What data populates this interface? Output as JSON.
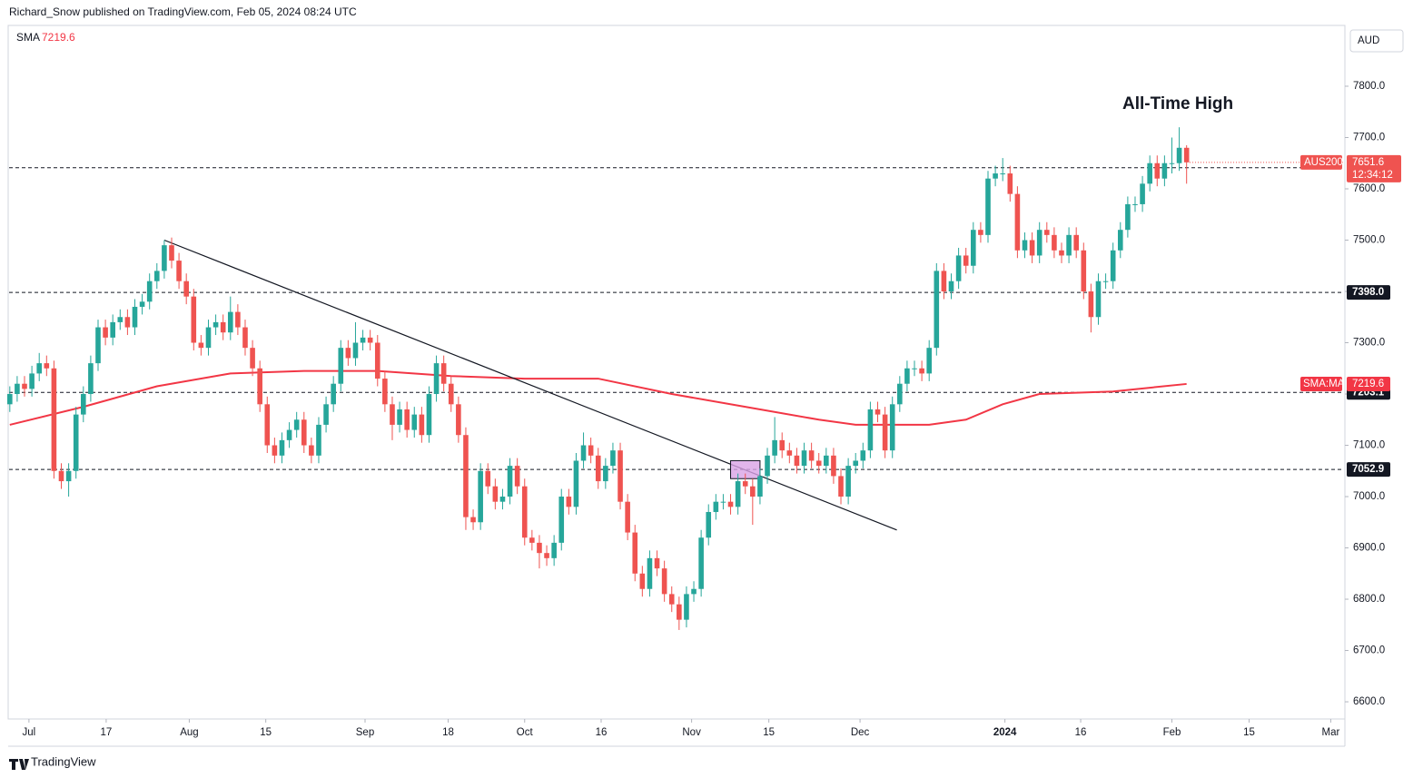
{
  "header": {
    "text": "Richard_Snow published on TradingView.com, Feb 05, 2024 08:24 UTC",
    "currency": "AUD"
  },
  "footer": {
    "brand": "TradingView"
  },
  "chart_data": {
    "type": "candlestick",
    "annotation": "All-Time High",
    "xlim": [
      -0.1,
      181.4
    ],
    "ylim": [
      6570,
      7915
    ],
    "yticks": [
      {
        "value": 6600,
        "label": "6600.0"
      },
      {
        "value": 6700,
        "label": "6700.0"
      },
      {
        "value": 6800,
        "label": "6800.0"
      },
      {
        "value": 6900,
        "label": "6900.0"
      },
      {
        "value": 7000,
        "label": "7000.0"
      },
      {
        "value": 7100,
        "label": "7100.0"
      },
      {
        "value": 7200,
        "label": "7200.0"
      },
      {
        "value": 7300,
        "label": "7300.0"
      },
      {
        "value": 7400,
        "label": "7400.0"
      },
      {
        "value": 7500,
        "label": "7500.0"
      },
      {
        "value": 7600,
        "label": "7600.0"
      },
      {
        "value": 7700,
        "label": "7700.0"
      },
      {
        "value": 7800,
        "label": "7800.0"
      }
    ],
    "xticks": [
      {
        "value": 2.6,
        "label": "Jul"
      },
      {
        "value": 13.1,
        "label": "17"
      },
      {
        "value": 24.4,
        "label": "Aug"
      },
      {
        "value": 34.8,
        "label": "15"
      },
      {
        "value": 48.3,
        "label": "Sep"
      },
      {
        "value": 59.6,
        "label": "18"
      },
      {
        "value": 70,
        "label": "Oct"
      },
      {
        "value": 80.4,
        "label": "16"
      },
      {
        "value": 92.7,
        "label": "Nov"
      },
      {
        "value": 103.2,
        "label": "15"
      },
      {
        "value": 115.6,
        "label": "Dec"
      },
      {
        "value": 135.3,
        "label": "2024"
      },
      {
        "value": 145.6,
        "label": "16"
      },
      {
        "value": 158,
        "label": "Feb"
      },
      {
        "value": 168.5,
        "label": "15"
      },
      {
        "value": 179.6,
        "label": "Mar"
      }
    ],
    "levels": [
      7641.2,
      {
        "value": 7398,
        "label": "7398.0"
      },
      7203.1,
      7052.9
    ],
    "countdown": "12:34:12",
    "series": [
      {
        "name": "AUS200",
        "up_color": "#26a69a",
        "down_color": "#ef5350",
        "values": [
          [
            7180,
            7215,
            7165,
            7200
          ],
          [
            7200,
            7235,
            7185,
            7220
          ],
          [
            7220,
            7235,
            7195,
            7210
          ],
          [
            7210,
            7255,
            7195,
            7240
          ],
          [
            7240,
            7280,
            7225,
            7260
          ],
          [
            7260,
            7275,
            7235,
            7250
          ],
          [
            7250,
            7265,
            7035,
            7050
          ],
          [
            7050,
            7065,
            7015,
            7030
          ],
          [
            7030,
            7065,
            7000,
            7050
          ],
          [
            7050,
            7175,
            7035,
            7160
          ],
          [
            7160,
            7215,
            7145,
            7200
          ],
          [
            7200,
            7275,
            7185,
            7260
          ],
          [
            7260,
            7345,
            7245,
            7330
          ],
          [
            7330,
            7345,
            7295,
            7310
          ],
          [
            7310,
            7355,
            7295,
            7340
          ],
          [
            7340,
            7365,
            7325,
            7350
          ],
          [
            7350,
            7365,
            7315,
            7330
          ],
          [
            7330,
            7385,
            7315,
            7370
          ],
          [
            7370,
            7395,
            7355,
            7380
          ],
          [
            7380,
            7435,
            7365,
            7420
          ],
          [
            7420,
            7455,
            7405,
            7440
          ],
          [
            7440,
            7500,
            7425,
            7490
          ],
          [
            7490,
            7505,
            7445,
            7460
          ],
          [
            7460,
            7475,
            7405,
            7420
          ],
          [
            7420,
            7435,
            7375,
            7390
          ],
          [
            7390,
            7405,
            7285,
            7300
          ],
          [
            7300,
            7315,
            7275,
            7290
          ],
          [
            7290,
            7345,
            7275,
            7330
          ],
          [
            7330,
            7355,
            7315,
            7340
          ],
          [
            7340,
            7355,
            7305,
            7320
          ],
          [
            7320,
            7390,
            7305,
            7360
          ],
          [
            7360,
            7375,
            7315,
            7330
          ],
          [
            7330,
            7345,
            7275,
            7290
          ],
          [
            7290,
            7305,
            7235,
            7250
          ],
          [
            7250,
            7265,
            7165,
            7180
          ],
          [
            7180,
            7195,
            7085,
            7100
          ],
          [
            7100,
            7115,
            7065,
            7080
          ],
          [
            7080,
            7125,
            7065,
            7110
          ],
          [
            7110,
            7145,
            7095,
            7130
          ],
          [
            7130,
            7165,
            7115,
            7150
          ],
          [
            7150,
            7165,
            7085,
            7100
          ],
          [
            7100,
            7115,
            7065,
            7080
          ],
          [
            7080,
            7155,
            7065,
            7140
          ],
          [
            7140,
            7195,
            7125,
            7180
          ],
          [
            7180,
            7235,
            7165,
            7220
          ],
          [
            7220,
            7305,
            7205,
            7290
          ],
          [
            7290,
            7305,
            7255,
            7270
          ],
          [
            7270,
            7340,
            7255,
            7300
          ],
          [
            7300,
            7325,
            7285,
            7310
          ],
          [
            7310,
            7325,
            7285,
            7300
          ],
          [
            7300,
            7315,
            7215,
            7230
          ],
          [
            7230,
            7245,
            7165,
            7180
          ],
          [
            7180,
            7195,
            7110,
            7140
          ],
          [
            7140,
            7185,
            7125,
            7170
          ],
          [
            7170,
            7185,
            7115,
            7130
          ],
          [
            7130,
            7175,
            7115,
            7160
          ],
          [
            7160,
            7175,
            7105,
            7120
          ],
          [
            7120,
            7215,
            7105,
            7200
          ],
          [
            7200,
            7275,
            7185,
            7260
          ],
          [
            7260,
            7275,
            7205,
            7220
          ],
          [
            7220,
            7235,
            7165,
            7180
          ],
          [
            7180,
            7195,
            7105,
            7120
          ],
          [
            7120,
            7135,
            6935,
            6960
          ],
          [
            6960,
            6975,
            6935,
            6950
          ],
          [
            6950,
            7065,
            6935,
            7050
          ],
          [
            7050,
            7065,
            7005,
            7020
          ],
          [
            7020,
            7035,
            6975,
            6990
          ],
          [
            6990,
            7015,
            6975,
            7000
          ],
          [
            7000,
            7075,
            6985,
            7060
          ],
          [
            7060,
            7075,
            7005,
            7020
          ],
          [
            7020,
            7035,
            6905,
            6920
          ],
          [
            6920,
            6935,
            6895,
            6910
          ],
          [
            6910,
            6925,
            6860,
            6890
          ],
          [
            6890,
            6905,
            6865,
            6880
          ],
          [
            6880,
            6925,
            6865,
            6910
          ],
          [
            6910,
            7015,
            6895,
            7000
          ],
          [
            7000,
            7015,
            6965,
            6980
          ],
          [
            6980,
            7085,
            6965,
            7070
          ],
          [
            7070,
            7125,
            7055,
            7100
          ],
          [
            7100,
            7115,
            7065,
            7080
          ],
          [
            7080,
            7095,
            7015,
            7030
          ],
          [
            7030,
            7075,
            7015,
            7060
          ],
          [
            7060,
            7105,
            7045,
            7090
          ],
          [
            7090,
            7105,
            6975,
            6990
          ],
          [
            6990,
            7005,
            6915,
            6930
          ],
          [
            6930,
            6945,
            6835,
            6850
          ],
          [
            6850,
            6865,
            6805,
            6820
          ],
          [
            6820,
            6895,
            6805,
            6880
          ],
          [
            6880,
            6895,
            6845,
            6860
          ],
          [
            6860,
            6875,
            6795,
            6810
          ],
          [
            6810,
            6825,
            6775,
            6790
          ],
          [
            6790,
            6805,
            6740,
            6760
          ],
          [
            6760,
            6825,
            6745,
            6810
          ],
          [
            6810,
            6835,
            6795,
            6820
          ],
          [
            6820,
            6935,
            6805,
            6920
          ],
          [
            6920,
            6985,
            6905,
            6970
          ],
          [
            6970,
            7005,
            6955,
            6990
          ],
          [
            6990,
            7005,
            6975,
            6990
          ],
          [
            6990,
            7005,
            6965,
            6980
          ],
          [
            6980,
            7045,
            6965,
            7030
          ],
          [
            7030,
            7045,
            7005,
            7020
          ],
          [
            7020,
            7035,
            6945,
            7000
          ],
          [
            7000,
            7055,
            6985,
            7040
          ],
          [
            7040,
            7095,
            7025,
            7080
          ],
          [
            7080,
            7155,
            7065,
            7110
          ],
          [
            7110,
            7125,
            7075,
            7090
          ],
          [
            7090,
            7105,
            7065,
            7080
          ],
          [
            7080,
            7095,
            7045,
            7060
          ],
          [
            7060,
            7105,
            7045,
            7090
          ],
          [
            7090,
            7105,
            7055,
            7070
          ],
          [
            7070,
            7085,
            7045,
            7060
          ],
          [
            7060,
            7095,
            7045,
            7080
          ],
          [
            7080,
            7095,
            7025,
            7040
          ],
          [
            7040,
            7055,
            6985,
            7000
          ],
          [
            7000,
            7075,
            6985,
            7060
          ],
          [
            7060,
            7085,
            7045,
            7070
          ],
          [
            7070,
            7105,
            7055,
            7090
          ],
          [
            7090,
            7185,
            7075,
            7170
          ],
          [
            7170,
            7185,
            7145,
            7160
          ],
          [
            7160,
            7175,
            7075,
            7090
          ],
          [
            7090,
            7195,
            7075,
            7180
          ],
          [
            7180,
            7235,
            7165,
            7220
          ],
          [
            7220,
            7265,
            7205,
            7250
          ],
          [
            7250,
            7265,
            7235,
            7250
          ],
          [
            7250,
            7265,
            7225,
            7240
          ],
          [
            7240,
            7305,
            7225,
            7290
          ],
          [
            7290,
            7455,
            7275,
            7440
          ],
          [
            7440,
            7455,
            7385,
            7400
          ],
          [
            7400,
            7435,
            7385,
            7420
          ],
          [
            7420,
            7485,
            7405,
            7470
          ],
          [
            7470,
            7485,
            7435,
            7450
          ],
          [
            7450,
            7535,
            7435,
            7520
          ],
          [
            7520,
            7535,
            7495,
            7510
          ],
          [
            7510,
            7635,
            7495,
            7620
          ],
          [
            7620,
            7645,
            7605,
            7630
          ],
          [
            7630,
            7660,
            7615,
            7630
          ],
          [
            7630,
            7645,
            7575,
            7590
          ],
          [
            7590,
            7605,
            7465,
            7480
          ],
          [
            7480,
            7515,
            7465,
            7500
          ],
          [
            7500,
            7515,
            7455,
            7470
          ],
          [
            7470,
            7535,
            7455,
            7520
          ],
          [
            7520,
            7535,
            7495,
            7510
          ],
          [
            7510,
            7525,
            7465,
            7480
          ],
          [
            7480,
            7495,
            7455,
            7470
          ],
          [
            7470,
            7525,
            7455,
            7510
          ],
          [
            7510,
            7525,
            7465,
            7480
          ],
          [
            7480,
            7495,
            7385,
            7400
          ],
          [
            7400,
            7415,
            7320,
            7350
          ],
          [
            7350,
            7435,
            7335,
            7420
          ],
          [
            7420,
            7435,
            7405,
            7420
          ],
          [
            7420,
            7495,
            7405,
            7480
          ],
          [
            7480,
            7535,
            7465,
            7520
          ],
          [
            7520,
            7585,
            7505,
            7570
          ],
          [
            7570,
            7585,
            7555,
            7570
          ],
          [
            7570,
            7625,
            7555,
            7610
          ],
          [
            7610,
            7665,
            7595,
            7650
          ],
          [
            7650,
            7665,
            7605,
            7620
          ],
          [
            7620,
            7665,
            7605,
            7650
          ],
          [
            7650,
            7700,
            7630,
            7650
          ],
          [
            7650,
            7720,
            7635,
            7680
          ],
          [
            7680,
            7685,
            7610,
            7651.6
          ]
        ]
      }
    ],
    "sma": {
      "name": "SMA",
      "tag": "SMA:MA",
      "color": "#f23645",
      "x": [
        0,
        10,
        20,
        30,
        40,
        50,
        60,
        70,
        80,
        90,
        100,
        110,
        115,
        120,
        125,
        130,
        135,
        140,
        150,
        160
      ],
      "values": [
        7140,
        7175,
        7215,
        7240,
        7245,
        7245,
        7235,
        7230,
        7230,
        7200,
        7175,
        7150,
        7140,
        7140,
        7140,
        7150,
        7180,
        7200,
        7205,
        7219.6
      ]
    },
    "trendline": {
      "x": [
        21,
        120.6
      ],
      "values": [
        7500,
        6935
      ]
    },
    "box": {
      "x": [
        98,
        102
      ],
      "values": [
        7070,
        7035
      ],
      "color": "#d9a3e6"
    }
  }
}
